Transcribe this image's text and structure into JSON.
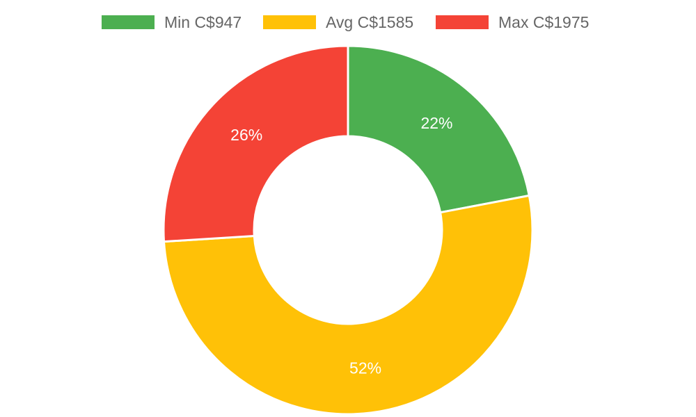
{
  "chart_data": {
    "type": "pie",
    "donut": true,
    "legend_position": "top",
    "series": [
      {
        "name": "Min C$947",
        "value": 22,
        "label": "22%",
        "color": "#4caf50"
      },
      {
        "name": "Avg C$1585",
        "value": 52,
        "label": "52%",
        "color": "#ffc107"
      },
      {
        "name": "Max C$1975",
        "value": 26,
        "label": "26%",
        "color": "#f44336"
      }
    ]
  }
}
